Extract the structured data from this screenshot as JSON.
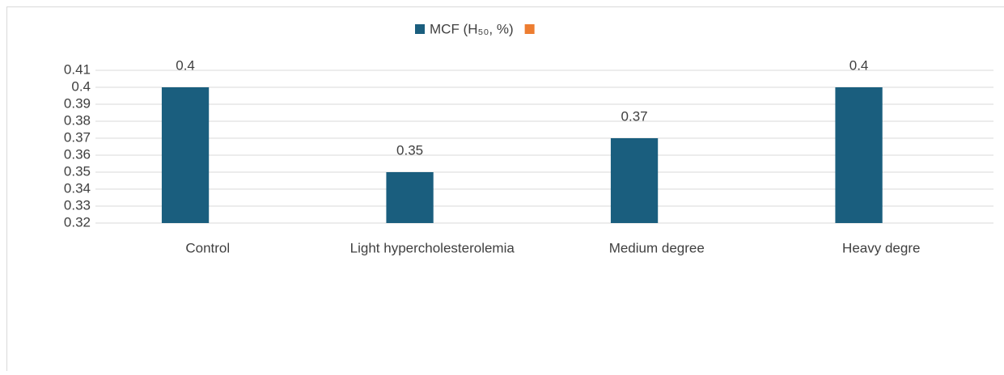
{
  "chart_data": {
    "type": "bar",
    "categories": [
      "Control",
      "Light hypercholesterolemia",
      "Medium degree",
      "Heavy degre"
    ],
    "series": [
      {
        "name": "MCF (H₅₀, %)",
        "color": "#1a5e7e",
        "values": [
          0.4,
          0.35,
          0.37,
          0.4
        ]
      },
      {
        "name": null,
        "color": "#ed7d31",
        "values": [
          null,
          null,
          null,
          null
        ]
      }
    ],
    "ylim": [
      0.32,
      0.41
    ],
    "yticks": [
      0.32,
      0.33,
      0.34,
      0.35,
      0.36,
      0.37,
      0.38,
      0.39,
      0.4,
      0.41
    ],
    "grid": true,
    "legend": "top"
  }
}
